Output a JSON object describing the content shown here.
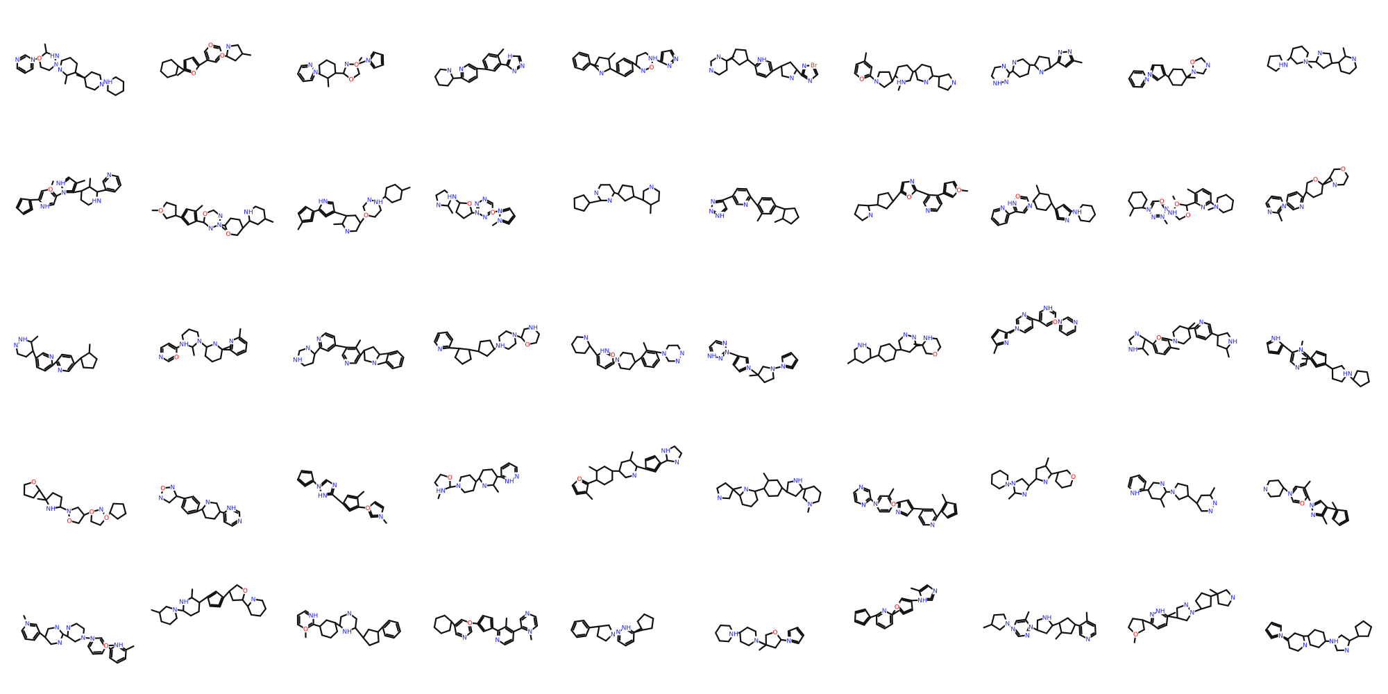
{
  "colors": {
    "background": "#ffffff",
    "bond": "#111111",
    "N": "#2020ff",
    "O": "#ff0000",
    "Br": "#a0522d"
  },
  "grid": {
    "columns": 10,
    "rows": 5
  },
  "molecules": [
    {
      "labels": [
        "HN",
        "N",
        "N",
        "N",
        "N",
        "N",
        "NH",
        "O"
      ]
    },
    {
      "labels": [
        "O",
        "O",
        "N",
        "O"
      ]
    },
    {
      "labels": [
        "O",
        "O",
        "N",
        "N",
        "N",
        "N"
      ]
    },
    {
      "labels": [
        "N",
        "N",
        "N",
        "N",
        "H"
      ]
    },
    {
      "labels": [
        "NH",
        "N",
        "N",
        "N",
        "N",
        "O"
      ]
    },
    {
      "labels": [
        "N",
        "N",
        "N",
        "N",
        "NH",
        "N",
        "Br"
      ]
    },
    {
      "labels": [
        "HN",
        "N",
        "O",
        "N",
        "N"
      ]
    },
    {
      "labels": [
        "N",
        "N",
        "N",
        "NH",
        "N",
        "N",
        "N"
      ]
    },
    {
      "labels": [
        "N",
        "N",
        "N",
        "O",
        "N"
      ]
    },
    {
      "labels": [
        "HN",
        "N",
        "N",
        "N"
      ]
    },
    {
      "labels": [
        "HN",
        "N",
        "O",
        "NH",
        "N",
        "NH"
      ]
    },
    {
      "labels": [
        "O",
        "O",
        "N",
        "N",
        "N",
        "O",
        "NH"
      ]
    },
    {
      "labels": [
        "HN",
        "N",
        "O",
        "NH",
        "N"
      ]
    },
    {
      "labels": [
        "HN",
        "N",
        "N",
        "N",
        "N",
        "N",
        "O",
        "N",
        "O",
        "N"
      ]
    },
    {
      "labels": [
        "N",
        "N",
        "N"
      ]
    },
    {
      "labels": [
        "N",
        "N",
        "NH",
        "N"
      ]
    },
    {
      "labels": [
        "N",
        "N",
        "O",
        "O",
        "N"
      ]
    },
    {
      "labels": [
        "O",
        "N",
        "NH",
        "N",
        "HN",
        "N"
      ]
    },
    {
      "labels": [
        "O",
        "N",
        "N",
        "NH",
        "O",
        "O",
        "N",
        "N",
        "N",
        "N"
      ]
    },
    {
      "labels": [
        "N",
        "O",
        "N",
        "O",
        "N",
        "N"
      ]
    },
    {
      "labels": [
        "N",
        "N",
        "N",
        "NH"
      ]
    },
    {
      "labels": [
        "N",
        "NH",
        "N",
        "N",
        "O",
        "N"
      ]
    },
    {
      "labels": [
        "N",
        "N",
        "NH",
        "N",
        "N"
      ]
    },
    {
      "labels": [
        "NH",
        "N",
        "O",
        "NH",
        "N"
      ]
    },
    {
      "labels": [
        "HN",
        "N",
        "N",
        "N",
        "O",
        "N",
        "N"
      ]
    },
    {
      "labels": [
        "N",
        "N",
        "N",
        "N",
        "NH",
        "N",
        "N"
      ]
    },
    {
      "labels": [
        "N",
        "NH",
        "O",
        "NH",
        "N"
      ]
    },
    {
      "labels": [
        "N",
        "N",
        "NH",
        "N",
        "N",
        "O",
        "N"
      ]
    },
    {
      "labels": [
        "NH",
        "NH",
        "O",
        "N",
        "N",
        "N"
      ]
    },
    {
      "labels": [
        "HN",
        "N",
        "NH",
        "N"
      ]
    },
    {
      "labels": [
        "O",
        "N",
        "O",
        "O",
        "NH",
        "N",
        "O"
      ]
    },
    {
      "labels": [
        "O",
        "NH",
        "N",
        "N",
        "N",
        "N"
      ]
    },
    {
      "labels": [
        "N",
        "HN",
        "N",
        "N",
        "O"
      ]
    },
    {
      "labels": [
        "HN",
        "N",
        "O",
        "N",
        "N",
        "NH"
      ]
    },
    {
      "labels": [
        "N",
        "O",
        "NH",
        "N"
      ]
    },
    {
      "labels": [
        "NH",
        "N",
        "N",
        "N"
      ]
    },
    {
      "labels": [
        "N",
        "N",
        "N",
        "N",
        "N",
        "O"
      ]
    },
    {
      "labels": [
        "N",
        "N",
        "O",
        "N",
        "N"
      ]
    },
    {
      "labels": [
        "NH",
        "N",
        "N",
        "N",
        "N"
      ]
    },
    {
      "labels": [
        "N",
        "N",
        "N",
        "O",
        "N"
      ]
    },
    {
      "labels": [
        "N",
        "N",
        "O",
        "N",
        "N",
        "N",
        "N",
        "NH"
      ]
    },
    {
      "labels": [
        "N",
        "O",
        "NH",
        "N"
      ]
    },
    {
      "labels": [
        "NH",
        "N",
        "O",
        "NH"
      ]
    },
    {
      "labels": [
        "N",
        "O",
        "N",
        "N",
        "N"
      ]
    },
    {
      "labels": [
        "N",
        "N",
        "NH"
      ]
    },
    {
      "labels": [
        "N",
        "N",
        "O",
        "NH"
      ]
    },
    {
      "labels": [
        "O",
        "N",
        "N",
        "NH"
      ]
    },
    {
      "labels": [
        "N",
        "N",
        "N",
        "NH",
        "N",
        "N"
      ]
    },
    {
      "labels": [
        "O",
        "N",
        "N",
        "N",
        "N",
        "NH"
      ]
    },
    {
      "labels": [
        "N",
        "N",
        "N",
        "NH"
      ]
    }
  ]
}
